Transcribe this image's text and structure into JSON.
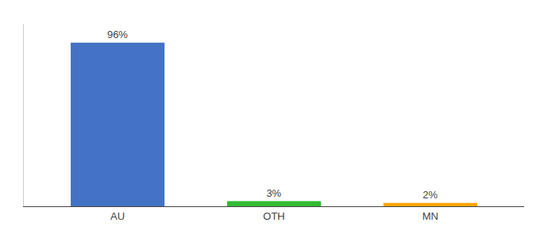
{
  "chart_data": {
    "type": "bar",
    "categories": [
      "AU",
      "OTH",
      "MN"
    ],
    "values": [
      96,
      3,
      2
    ],
    "value_labels": [
      "96%",
      "3%",
      "2%"
    ],
    "data_labels": true,
    "colors": [
      "#4472C4",
      "#33BB33",
      "#FFA500"
    ],
    "ylim": [
      0,
      107
    ],
    "tick_labels": "x",
    "grid": false
  }
}
